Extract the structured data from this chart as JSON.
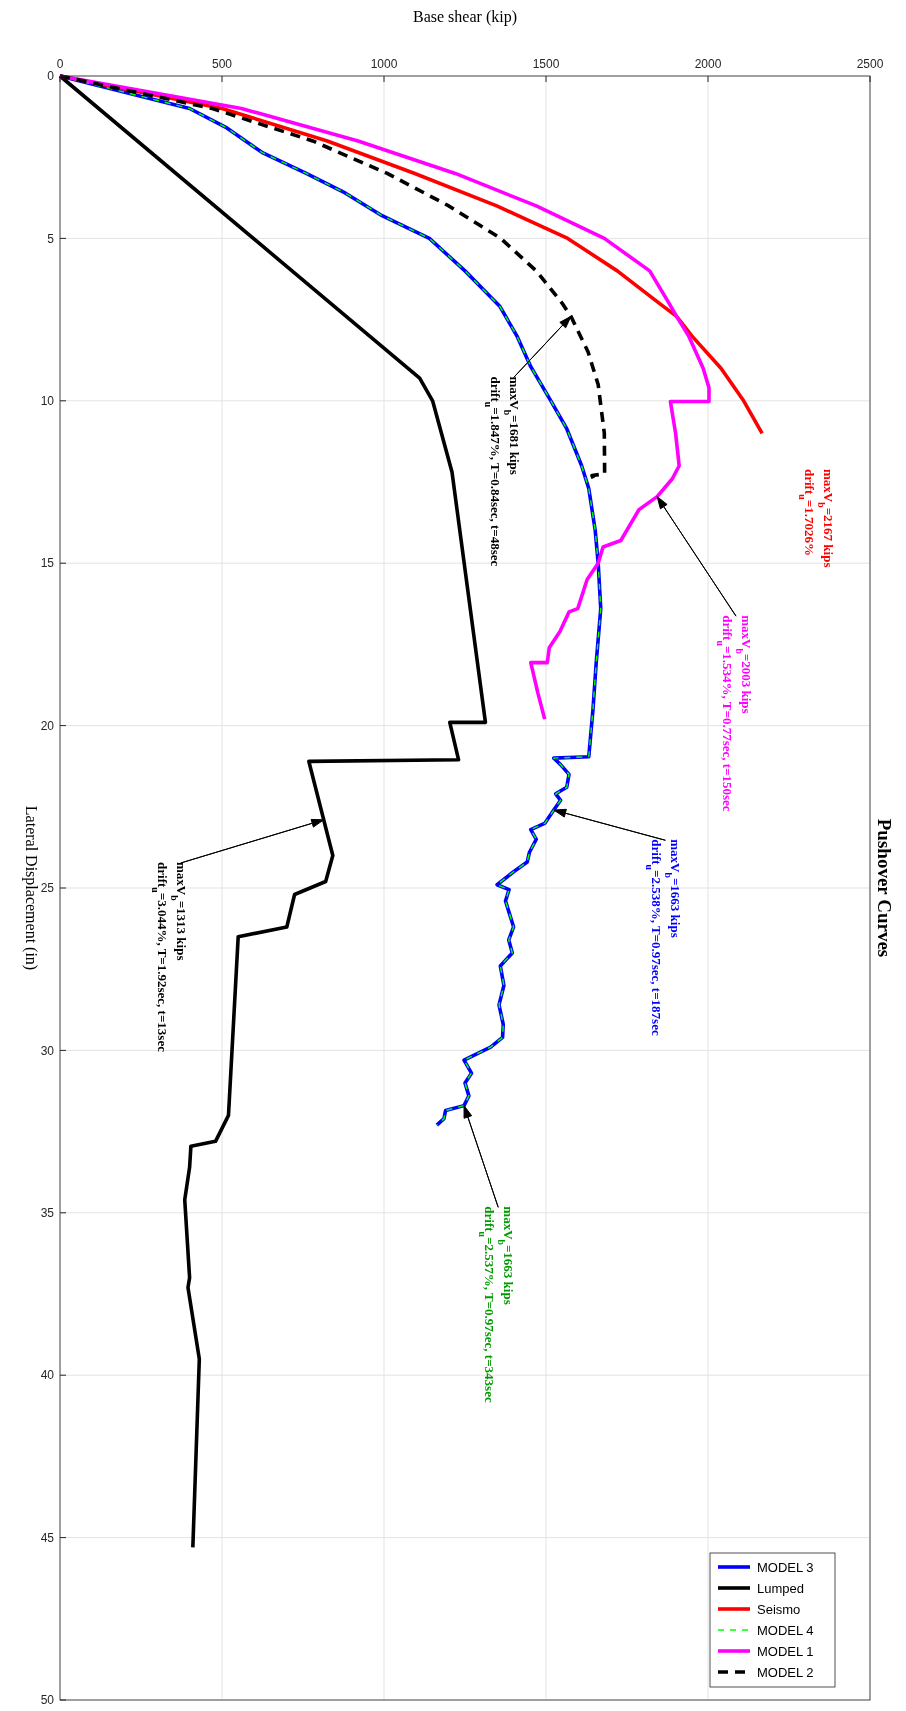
{
  "chart_data": {
    "type": "line",
    "title": "Pushover Curves",
    "xlabel": "Base shear (kip)",
    "ylabel": "Lateral Displacement (in)",
    "xlim": [
      0,
      2500
    ],
    "ylim": [
      50,
      0
    ],
    "xticks": [
      0,
      500,
      1000,
      1500,
      2000,
      2500
    ],
    "yticks": [
      0,
      5,
      10,
      15,
      20,
      25,
      30,
      35,
      40,
      45,
      50
    ],
    "grid": true,
    "legend": "bottom right",
    "marker": "none",
    "series": [
      {
        "name": "MODEL 3",
        "color": "#0000ff",
        "line_style": "solid",
        "values": [
          0,
          1,
          1.6,
          2.35,
          3,
          3.6,
          4.3,
          5,
          6,
          7.1,
          8,
          8.95,
          10,
          10.86,
          12,
          12.7,
          14,
          15,
          16.4,
          18.06,
          19.5,
          20.96,
          21.0,
          21.2,
          21.5,
          21.9,
          22.1,
          22.3,
          22.6,
          23.0,
          23.2,
          23.5,
          23.9,
          24.2,
          24.5,
          24.9,
          25.05,
          25.4,
          25.75,
          26.2,
          26.6,
          27.0,
          27.4,
          28,
          28.6,
          29.2,
          29.6,
          29.9,
          30.3,
          30.7,
          31.0,
          31.4,
          31.7,
          31.85,
          32.1,
          32.3
        ],
        "x": [
          0,
          400,
          515,
          623,
          760,
          880,
          994,
          1140,
          1250,
          1358,
          1410,
          1453,
          1515,
          1564,
          1610,
          1632,
          1652,
          1661,
          1669,
          1655,
          1645,
          1632,
          1524,
          1545,
          1571,
          1564,
          1530,
          1545,
          1524,
          1497,
          1453,
          1470,
          1449,
          1442,
          1400,
          1349,
          1386,
          1375,
          1386,
          1400,
          1385,
          1396,
          1359,
          1370,
          1355,
          1368,
          1366,
          1329,
          1247,
          1270,
          1250,
          1262,
          1247,
          1190,
          1185,
          1163
        ]
      },
      {
        "name": "Lumped",
        "color": "#000000",
        "line_style": "solid",
        "values": [
          0,
          9.3,
          10,
          12.2,
          19.9,
          19.9,
          21.05,
          21.1,
          24,
          24.8,
          25.2,
          26.2,
          26.5,
          32,
          32.8,
          32.95,
          33.6,
          34.6,
          37,
          37.3,
          39.5,
          45.3
        ],
        "x": [
          0,
          1110,
          1150,
          1210,
          1313,
          1203,
          1230,
          768,
          842,
          820,
          724,
          700,
          550,
          520,
          480,
          404,
          400,
          385,
          400,
          395,
          430,
          410
        ]
      },
      {
        "name": "Seismo",
        "color": "#ff0000",
        "line_style": "solid",
        "values": [
          0,
          1,
          2,
          3,
          4,
          5,
          6,
          7,
          7.4,
          8,
          9,
          10,
          11
        ],
        "x": [
          0,
          500,
          825,
          1095,
          1348,
          1567,
          1720,
          1850,
          1903,
          1950,
          2040,
          2110,
          2167
        ]
      },
      {
        "name": "MODEL 4",
        "color": "#00ff00",
        "line_style": "dashed",
        "values": [
          0,
          1,
          1.6,
          2.35,
          3,
          3.6,
          4.3,
          5,
          6,
          7.1,
          8,
          8.95,
          10,
          10.86,
          12,
          12.7,
          14,
          15,
          16.4,
          18.06,
          19.5,
          20.96,
          21.0,
          21.2,
          21.5,
          21.9,
          22.1,
          22.3,
          22.6,
          23.0,
          23.2,
          23.5,
          23.9,
          24.2,
          24.5,
          24.9,
          25.05,
          25.4,
          25.75,
          26.2,
          26.6,
          27.0,
          27.4,
          28,
          28.6,
          29.2,
          29.6,
          29.9,
          30.3,
          30.7,
          31.0,
          31.4,
          31.7,
          31.85,
          32.1,
          32.3
        ],
        "x": [
          0,
          400,
          515,
          623,
          760,
          880,
          994,
          1140,
          1250,
          1358,
          1410,
          1453,
          1515,
          1564,
          1610,
          1632,
          1652,
          1661,
          1669,
          1655,
          1645,
          1632,
          1524,
          1545,
          1571,
          1564,
          1530,
          1545,
          1524,
          1497,
          1453,
          1470,
          1449,
          1442,
          1400,
          1349,
          1386,
          1375,
          1386,
          1400,
          1385,
          1396,
          1359,
          1370,
          1355,
          1368,
          1366,
          1329,
          1247,
          1270,
          1250,
          1262,
          1247,
          1190,
          1185,
          1163
        ]
      },
      {
        "name": "MODEL 1",
        "color": "#ff00ff",
        "line_style": "solid",
        "values": [
          0,
          1,
          2,
          3,
          4,
          5,
          6,
          7,
          7.4,
          8,
          9,
          9.6,
          10.02,
          10.02,
          11,
          12.0,
          12.4,
          12.95,
          13.35,
          14.3,
          14.5,
          15.0,
          15.5,
          16.4,
          16.5,
          17.1,
          17.6,
          18.06,
          18.06,
          19.0,
          19.8
        ],
        "x": [
          0,
          560,
          920,
          1220,
          1470,
          1680,
          1820,
          1880,
          1903,
          1940,
          1985,
          2003,
          2003,
          1884,
          1900,
          1911,
          1890,
          1843,
          1787,
          1731,
          1676,
          1661,
          1627,
          1598,
          1571,
          1543,
          1510,
          1504,
          1453,
          1475,
          1496
        ]
      },
      {
        "name": "MODEL 2",
        "color": "#000000",
        "line_style": "dashed",
        "values": [
          0,
          1,
          2,
          3,
          4,
          5,
          6,
          7,
          7.4,
          8.5,
          9.5,
          11,
          12.25,
          12.3,
          12.5
        ],
        "x": [
          0,
          470,
          780,
          1010,
          1200,
          1360,
          1470,
          1550,
          1577,
          1630,
          1661,
          1680,
          1681,
          1642,
          1650
        ]
      }
    ],
    "annotations": [
      "maxV$_{b}$=2167 kips\ndrift$_{u}$=1.7026%",
      "maxV$_{b}$=2003 kips\ndrift$_{u}$=1.534%, T=0.77sec, t=150sec",
      "maxV$_{b}$=1681 kips\ndrift$_{u}$=1.847%, T=0.84sec, t=48sec",
      "maxV$_{b}$=1663 kips\ndrift$_{u}$=2.538%, T=0.97sec, t=187sec",
      "maxV$_{b}$=1663 kips\ndrift$_{u}$=2.537%, T=0.97sec, t=343sec",
      "maxV$_{b}$=1313 kips\ndrift$_{u}$=3.044%, T=1.92sec, t=13sec"
    ]
  }
}
